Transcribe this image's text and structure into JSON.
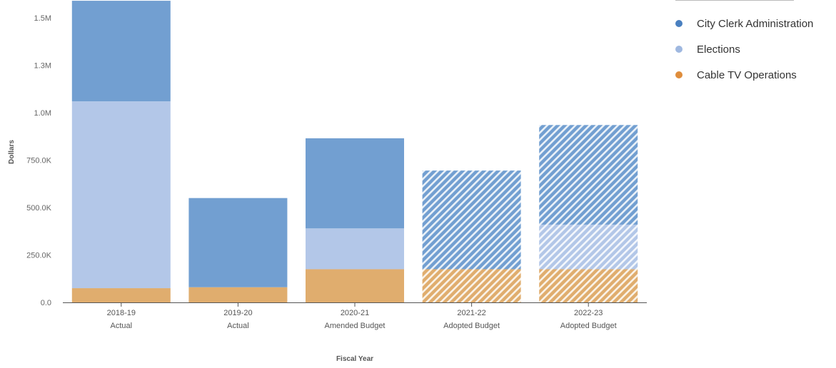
{
  "chart_data": {
    "type": "bar",
    "stacked": true,
    "ylabel": "Dollars",
    "xlabel": "Fiscal Year",
    "ylim": [
      0,
      1600000
    ],
    "yticks": [
      {
        "value": 0,
        "label": "0.0"
      },
      {
        "value": 250000,
        "label": "250.0K"
      },
      {
        "value": 500000,
        "label": "500.0K"
      },
      {
        "value": 750000,
        "label": "750.0K"
      },
      {
        "value": 1000000,
        "label": "1.0M"
      },
      {
        "value": 1250000,
        "label": "1.3M"
      },
      {
        "value": 1500000,
        "label": "1.5M"
      }
    ],
    "categories": [
      {
        "year": "2018-19",
        "sub": "Actual",
        "hatched": false
      },
      {
        "year": "2019-20",
        "sub": "Actual",
        "hatched": false
      },
      {
        "year": "2020-21",
        "sub": "Amended Budget",
        "hatched": false
      },
      {
        "year": "2021-22",
        "sub": "Adopted Budget",
        "hatched": true
      },
      {
        "year": "2022-23",
        "sub": "Adopted Budget",
        "hatched": true
      }
    ],
    "series": [
      {
        "name": "Cable TV Operations",
        "color": "#e0ad6e",
        "legend_color": "#df8d3c",
        "values": [
          75000,
          80000,
          175000,
          175000,
          175000
        ]
      },
      {
        "name": "Elections",
        "color": "#b3c7e8",
        "legend_color": "#9fb8e0",
        "values": [
          985000,
          0,
          215000,
          0,
          235000
        ]
      },
      {
        "name": "City Clerk Administration",
        "color": "#729fd1",
        "legend_color": "#4a80c0",
        "values": [
          530000,
          470000,
          475000,
          520000,
          525000
        ]
      }
    ],
    "legend": {
      "position": "top-right",
      "order": [
        "City Clerk Administration",
        "Elections",
        "Cable TV Operations"
      ]
    },
    "grid": false
  }
}
